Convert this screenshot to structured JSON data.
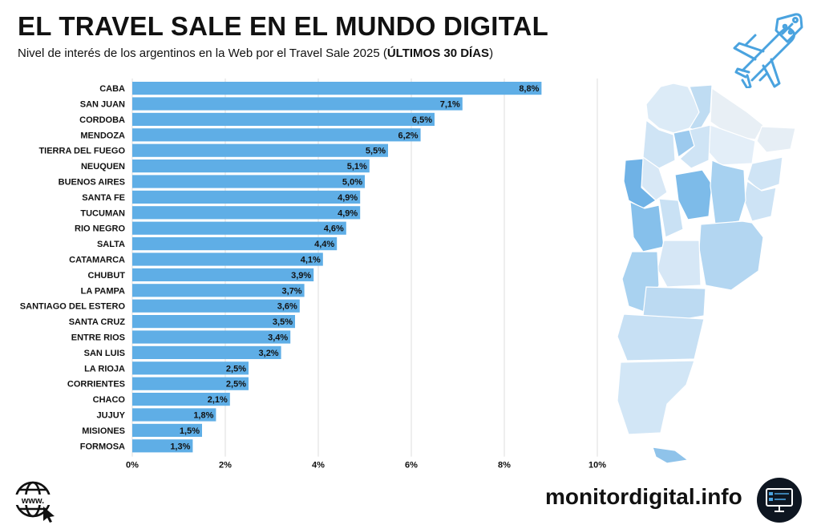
{
  "header": {
    "title": "EL TRAVEL SALE EN EL MUNDO DIGITAL",
    "subtitle_prefix": "Nivel de interés de los argentinos en la Web por el Travel Sale 2025 (",
    "subtitle_bold": "ÚLTIMOS 30 DÍAS",
    "subtitle_suffix": ")"
  },
  "icons": {
    "top_right": "airplane-discount-icon",
    "bottom_left": "www-globe-icon",
    "bottom_right": "monitor-icon",
    "map": "argentina-map"
  },
  "colors": {
    "bar": "#5faee6",
    "accent": "#4aa3df",
    "grid": "#dddddd",
    "map_dark": "#6fb2e6",
    "map_light": "#dcebf7"
  },
  "footer": {
    "brand": "monitordigital.info"
  },
  "chart_data": {
    "type": "bar",
    "orientation": "horizontal",
    "title": "EL TRAVEL SALE EN EL MUNDO DIGITAL",
    "xlabel": "",
    "ylabel": "",
    "xlim": [
      0,
      10
    ],
    "grid": true,
    "xticks": [
      "0%",
      "2%",
      "4%",
      "6%",
      "8%",
      "10%"
    ],
    "categories": [
      "CABA",
      "SAN JUAN",
      "CORDOBA",
      "MENDOZA",
      "TIERRA DEL FUEGO",
      "NEUQUEN",
      "BUENOS AIRES",
      "SANTA FE",
      "TUCUMAN",
      "RIO NEGRO",
      "SALTA",
      "CATAMARCA",
      "CHUBUT",
      "LA PAMPA",
      "SANTIAGO DEL ESTERO",
      "SANTA CRUZ",
      "ENTRE RIOS",
      "SAN LUIS",
      "LA RIOJA",
      "CORRIENTES",
      "CHACO",
      "JUJUY",
      "MISIONES",
      "FORMOSA"
    ],
    "values": [
      8.8,
      7.1,
      6.5,
      6.2,
      5.5,
      5.1,
      5.0,
      4.9,
      4.9,
      4.6,
      4.4,
      4.1,
      3.9,
      3.7,
      3.6,
      3.5,
      3.4,
      3.2,
      2.5,
      2.5,
      2.1,
      1.8,
      1.5,
      1.3
    ],
    "labels": [
      "8,8%",
      "7,1%",
      "6,5%",
      "6,2%",
      "5,5%",
      "5,1%",
      "5,0%",
      "4,9%",
      "4,9%",
      "4,6%",
      "4,4%",
      "4,1%",
      "3,9%",
      "3,7%",
      "3,6%",
      "3,5%",
      "3,4%",
      "3,2%",
      "2,5%",
      "2,5%",
      "2,1%",
      "1,8%",
      "1,5%",
      "1,3%"
    ]
  }
}
